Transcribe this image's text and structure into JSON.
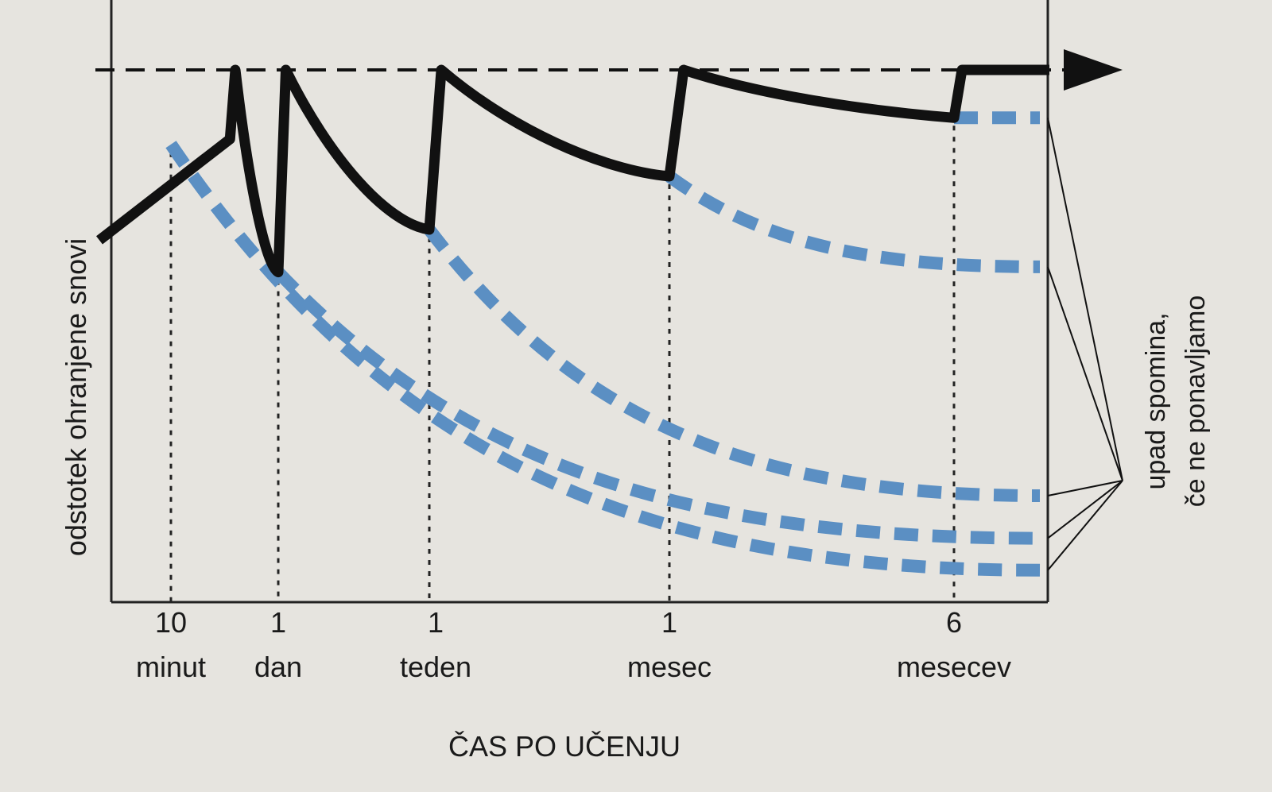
{
  "chart_data": {
    "type": "line",
    "xlabel": "ČAS PO UČENJU",
    "ylabel": "odstotek ohranjene snovi",
    "ylim": [
      0,
      100
    ],
    "ticks": [
      {
        "num": "10",
        "unit": "minut"
      },
      {
        "num": "1",
        "unit": "dan"
      },
      {
        "num": "1",
        "unit": "teden"
      },
      {
        "num": "1",
        "unit": "mesec"
      },
      {
        "num": "6",
        "unit": "mesecev"
      }
    ],
    "annotation": [
      "upad spomina,",
      "če ne ponavljamo"
    ],
    "retention_with_review": [
      {
        "t": 0.0,
        "y": 68
      },
      {
        "t": 0.55,
        "y": 87
      },
      {
        "t": 0.6,
        "y": 100
      },
      {
        "t": 1.0,
        "y": 62
      },
      {
        "t": 1.05,
        "y": 100
      },
      {
        "t": 2.0,
        "y": 70
      },
      {
        "t": 2.05,
        "y": 100
      },
      {
        "t": 3.0,
        "y": 80
      },
      {
        "t": 3.05,
        "y": 100
      },
      {
        "t": 4.0,
        "y": 91
      },
      {
        "t": 4.05,
        "y": 100
      },
      {
        "t": 4.6,
        "y": 100
      }
    ],
    "forgetting_curves_without_review": [
      {
        "start_tick": 0,
        "start_y": 86,
        "end_y": 6
      },
      {
        "start_tick": 1,
        "start_y": 62,
        "end_y": 12
      },
      {
        "start_tick": 2,
        "start_y": 70,
        "end_y": 20
      },
      {
        "start_tick": 3,
        "start_y": 80,
        "end_y": 63
      },
      {
        "start_tick": 4,
        "start_y": 91,
        "end_y": 91
      }
    ],
    "colors": {
      "retention": "#111111",
      "forgetting": "#5b8fc3",
      "reference": "#111111"
    }
  }
}
